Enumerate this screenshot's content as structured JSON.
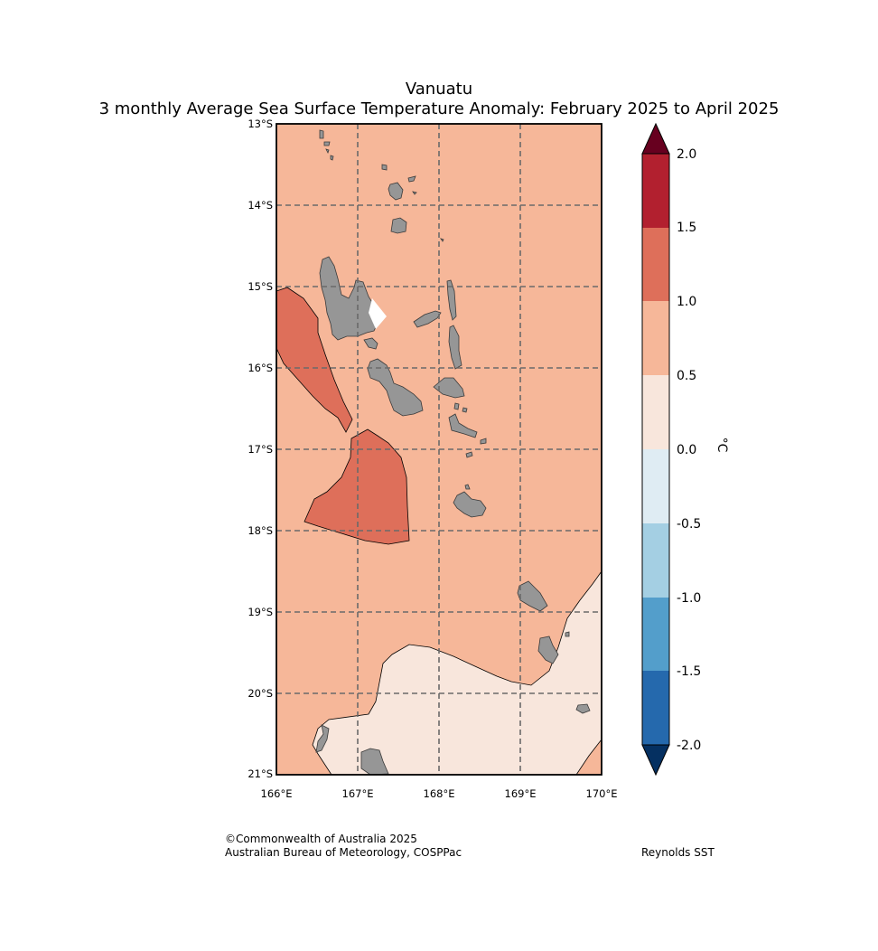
{
  "title": {
    "region": "Vanuatu",
    "subtitle": "3 monthly Average Sea Surface Temperature Anomaly: February 2025 to April 2025"
  },
  "map": {
    "lat_labels": [
      "13°S",
      "14°S",
      "15°S",
      "16°S",
      "17°S",
      "18°S",
      "19°S",
      "20°S",
      "21°S"
    ],
    "lon_labels": [
      "166°E",
      "167°E",
      "168°E",
      "169°E",
      "170°E"
    ],
    "lat_range": [
      -21,
      -13
    ],
    "lon_range": [
      166,
      170
    ],
    "land_color": "#969696",
    "gridlines": "dashed",
    "anomaly_regions": [
      {
        "name": "background",
        "range": "0.5 to 1.0",
        "color": "#f6b799"
      },
      {
        "name": "west-warm-patch",
        "range": "1.0 to 1.5",
        "color": "#de6f5a"
      },
      {
        "name": "central-warm-patch",
        "range": "1.0 to 1.5",
        "color": "#de6f5a"
      },
      {
        "name": "south-mild-region",
        "range": "0.0 to 0.5",
        "color": "#f8e6dc"
      }
    ]
  },
  "colorbar": {
    "unit": "°C",
    "tick_labels": [
      "2.0",
      "1.5",
      "1.0",
      "0.5",
      "0.0",
      "-0.5",
      "-1.0",
      "-1.5",
      "-2.0"
    ],
    "bins": [
      {
        "range": "above 2.0",
        "color": "#67001f"
      },
      {
        "range": "1.5 to 2.0",
        "color": "#b2202f"
      },
      {
        "range": "1.0 to 1.5",
        "color": "#de6f5a"
      },
      {
        "range": "0.5 to 1.0",
        "color": "#f6b799"
      },
      {
        "range": "0.0 to 0.5",
        "color": "#f8e6dc"
      },
      {
        "range": "-0.5 to 0.0",
        "color": "#dfecf3"
      },
      {
        "range": "-1.0 to -0.5",
        "color": "#a4cfe3"
      },
      {
        "range": "-1.5 to -1.0",
        "color": "#539ecb"
      },
      {
        "range": "-2.0 to -1.5",
        "color": "#2569ad"
      },
      {
        "range": "below -2.0",
        "color": "#053061"
      }
    ]
  },
  "footer": {
    "copyright": "©Commonwealth of Australia 2025",
    "agency": "Australian Bureau of Meteorology, COSPPac",
    "dataset": "Reynolds SST"
  }
}
